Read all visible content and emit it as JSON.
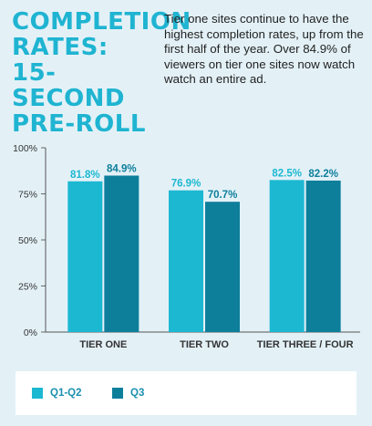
{
  "title_lines": [
    "COMPLETION",
    "RATES:",
    "15-SECOND",
    "PRE-ROLL"
  ],
  "intro_text": "Tier one sites continue to have the highest completion rates, up from the first half of the year. Over 84.9% of viewers on tier one sites now watch watch an entire ad.",
  "colors": {
    "series1": "#1cb8d2",
    "series2": "#0d7f9b",
    "title": "#1fb4d1",
    "background": "#e3f1f7"
  },
  "chart_data": {
    "type": "bar",
    "categories": [
      "TIER ONE",
      "TIER TWO",
      "TIER THREE / FOUR"
    ],
    "series": [
      {
        "name": "Q1-Q2",
        "values": [
          81.8,
          76.9,
          82.5
        ],
        "labels": [
          "81.8%",
          "76.9%",
          "82.5%"
        ]
      },
      {
        "name": "Q3",
        "values": [
          84.9,
          70.7,
          82.2
        ],
        "labels": [
          "84.9%",
          "70.7%",
          "82.2%"
        ]
      }
    ],
    "yticks": [
      "100%",
      "75%",
      "50%",
      "25%",
      "0%"
    ],
    "ylim": [
      0,
      100
    ],
    "grid": false,
    "legend_position": "bottom"
  }
}
